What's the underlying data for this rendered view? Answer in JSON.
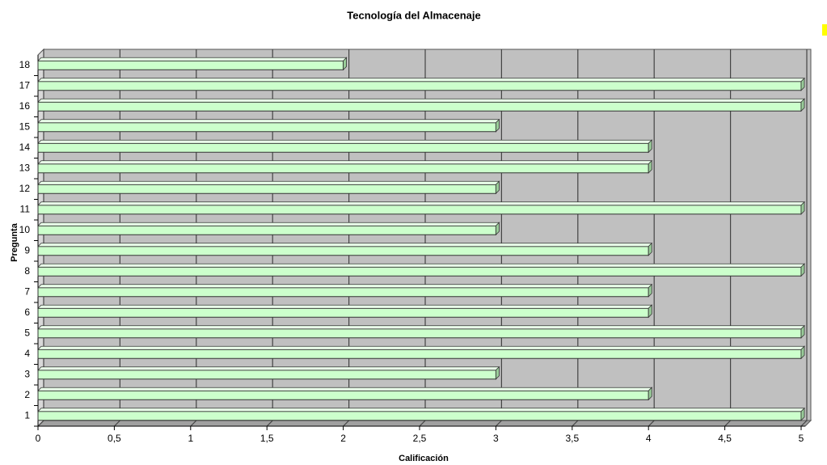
{
  "chart_data": {
    "type": "bar",
    "orientation": "horizontal",
    "title": "Tecnología del Almacenaje",
    "x_label": "Calificación",
    "y_label": "Pregunta",
    "categories": [
      "1",
      "2",
      "3",
      "4",
      "5",
      "6",
      "7",
      "8",
      "9",
      "10",
      "11",
      "12",
      "13",
      "14",
      "15",
      "16",
      "17",
      "18"
    ],
    "values": [
      5,
      4,
      3,
      5,
      5,
      4,
      4,
      5,
      4,
      3,
      5,
      3,
      4,
      4,
      3,
      5,
      5,
      2
    ],
    "color": "#ccffcc",
    "xlim": [
      0,
      5
    ],
    "xticks": [
      0,
      {
        "value": 0.5,
        "label": "0,5"
      },
      1,
      {
        "value": 1.5,
        "label": "1,5"
      },
      2,
      {
        "value": 2.5,
        "label": "2,5"
      },
      3,
      {
        "value": 3.5,
        "label": "3,5"
      },
      4,
      {
        "value": 4.5,
        "label": "4,5"
      },
      5
    ],
    "grid": true
  }
}
